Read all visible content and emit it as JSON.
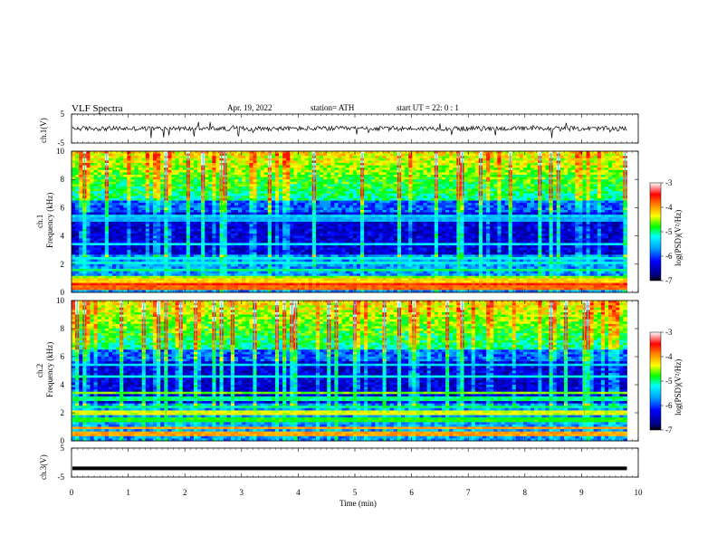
{
  "header": {
    "title": "VLF  Spectra",
    "date": "Apr. 19, 2022",
    "station": "station= ATH",
    "start": "start  UT  =    22: 0   : 1"
  },
  "chart_data": [
    {
      "type": "line",
      "panel": "ch1-waveform",
      "ylabel": "ch.1(V)",
      "ylim": [
        -5,
        5
      ],
      "y_ticks": [
        "5",
        "-5"
      ],
      "xlim": [
        0,
        10
      ],
      "data_end_min": 9.8,
      "baseline": 0,
      "noise_amplitude": 0.8,
      "spike_amplitude": 3
    },
    {
      "type": "heatmap",
      "panel": "ch1-spectrogram",
      "ylabel_channel": "ch.1",
      "ylabel": "Frequency  (kHz)",
      "ylim": [
        0,
        10
      ],
      "y_ticks": [
        "0",
        "2",
        "4",
        "6",
        "8",
        "10"
      ],
      "xlim": [
        0,
        10
      ],
      "data_end_min": 9.8,
      "colorbar": {
        "label": "log(PSD)(V²/Hz)",
        "ticks": [
          "-3",
          "-4",
          "-5",
          "-6",
          "-7"
        ],
        "range": [
          -7,
          -3
        ]
      },
      "bands_khz": [
        {
          "f": 0.3,
          "level": -3.8
        },
        {
          "f": 0.55,
          "level": -3.6
        },
        {
          "f": 0.8,
          "level": -4.2
        },
        {
          "f": 1.1,
          "level": -4.6
        },
        {
          "f": 1.6,
          "level": -5.0
        },
        {
          "f": 2.1,
          "level": -5.2
        },
        {
          "f": 2.4,
          "level": -5.2
        },
        {
          "f": 3.4,
          "level": -5.3
        },
        {
          "f": 5.2,
          "level": -5.6
        },
        {
          "f": 5.4,
          "level": -5.4
        }
      ]
    },
    {
      "type": "heatmap",
      "panel": "ch2-spectrogram",
      "ylabel_channel": "ch.2",
      "ylabel": "Frequency  (kHz)",
      "ylim": [
        0,
        10
      ],
      "y_ticks": [
        "0",
        "2",
        "4",
        "6",
        "8",
        "10"
      ],
      "xlim": [
        0,
        10
      ],
      "data_end_min": 9.8,
      "colorbar": {
        "label": "log(PSD)(V²/Hz)",
        "ticks": [
          "-3",
          "-4",
          "-5",
          "-6",
          "-7"
        ],
        "range": [
          -7,
          -3
        ]
      },
      "bands_khz": [
        {
          "f": 0.5,
          "level": -4.0
        },
        {
          "f": 0.9,
          "level": -4.0
        },
        {
          "f": 1.5,
          "level": -4.8
        },
        {
          "f": 2.0,
          "level": -4.4
        },
        {
          "f": 2.4,
          "level": -5.0
        },
        {
          "f": 3.0,
          "level": -5.0
        },
        {
          "f": 3.4,
          "level": -4.6
        },
        {
          "f": 4.6,
          "level": -5.2
        },
        {
          "f": 5.4,
          "level": -5.4
        }
      ]
    },
    {
      "type": "line",
      "panel": "ch3-waveform",
      "ylabel": "ch.3(V)",
      "ylim": [
        -5,
        5
      ],
      "y_ticks": [
        "5",
        "-5"
      ],
      "xlim": [
        0,
        10
      ],
      "data_end_min": 9.8,
      "baseline": -2,
      "noise_amplitude": 0
    }
  ],
  "x_axis": {
    "label": "Time  (min)",
    "ticks": [
      "0",
      "1",
      "2",
      "3",
      "4",
      "5",
      "6",
      "7",
      "8",
      "9",
      "10"
    ]
  }
}
